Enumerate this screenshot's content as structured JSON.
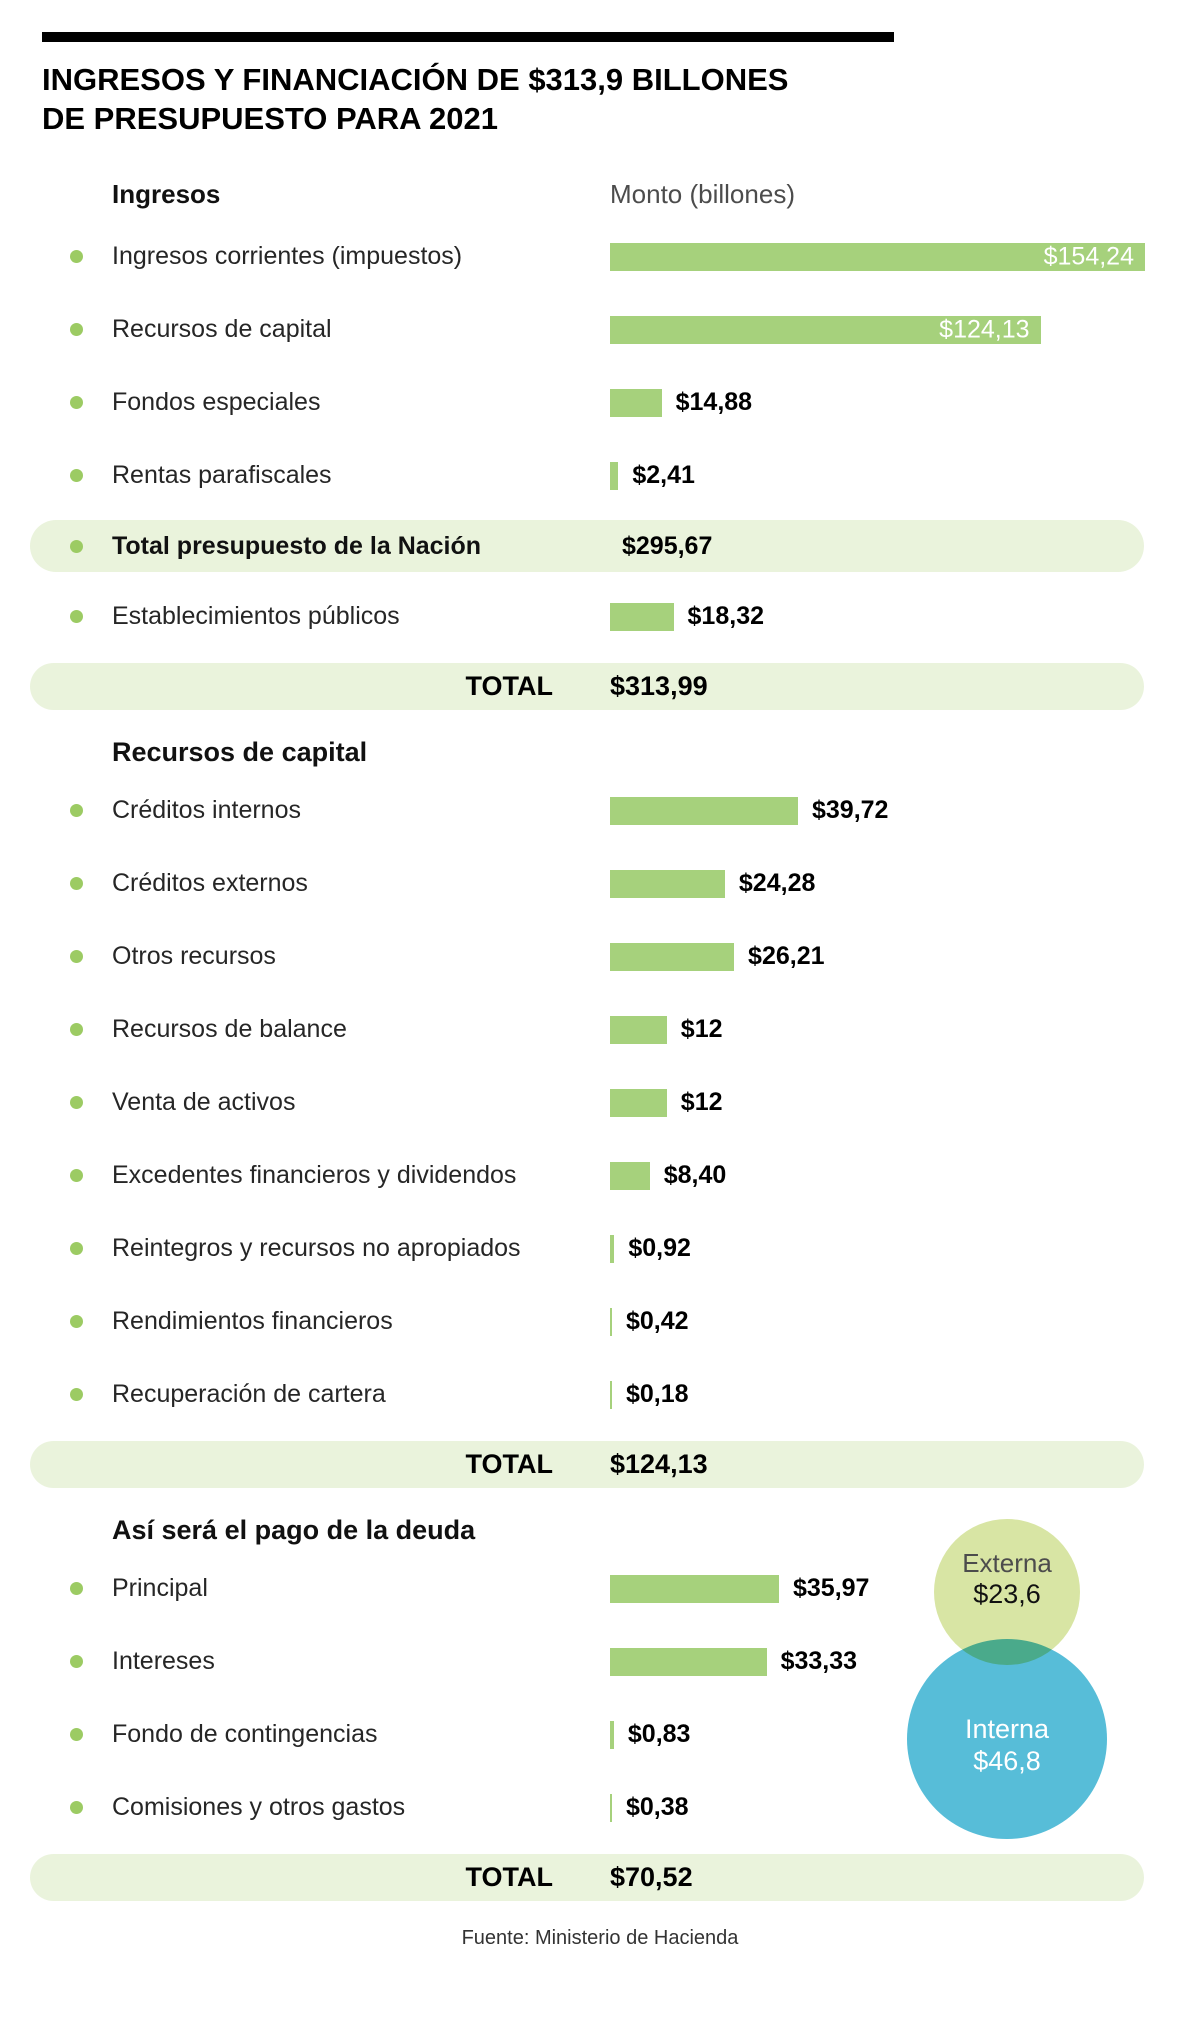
{
  "title": {
    "line1": "INGRESOS Y FINANCIACIÓN DE $313,9 BILLONES",
    "line2": "DE PRESUPUESTO PARA 2021"
  },
  "source": "Fuente: Ministerio de Hacienda",
  "colors": {
    "bar": "#a6d17c",
    "bullet": "#9ccb63",
    "highlight_bg": "#eaf3dc",
    "externa": "#d8e5a4",
    "interna": "#57bdd8"
  },
  "chart_data": [
    {
      "type": "bar",
      "id": "ingresos",
      "title": "Ingresos",
      "value_header": "Monto (billones)",
      "rows": [
        {
          "label": "Ingresos corrientes (impuestos)",
          "value": 154.24,
          "display": "$154,24",
          "value_inside": true
        },
        {
          "label": "Recursos de capital",
          "value": 124.13,
          "display": "$124,13",
          "value_inside": true
        },
        {
          "label": "Fondos especiales",
          "value": 14.88,
          "display": "$14,88"
        },
        {
          "label": "Rentas parafiscales",
          "value": 2.41,
          "display": "$2,41"
        },
        {
          "label": "Total presupuesto de la Nación",
          "value": 295.67,
          "display": "$295,67",
          "highlight": true,
          "no_bar": true
        },
        {
          "label": "Establecimientos públicos",
          "value": 18.32,
          "display": "$18,32"
        }
      ],
      "total": {
        "label": "TOTAL",
        "value": 313.99,
        "display": "$313,99"
      }
    },
    {
      "type": "bar",
      "id": "recursos-de-capital",
      "title": "Recursos de capital",
      "rows": [
        {
          "label": "Créditos internos",
          "value": 39.72,
          "display": "$39,72"
        },
        {
          "label": "Créditos externos",
          "value": 24.28,
          "display": "$24,28"
        },
        {
          "label": "Otros recursos",
          "value": 26.21,
          "display": "$26,21"
        },
        {
          "label": "Recursos de balance",
          "value": 12,
          "display": "$12"
        },
        {
          "label": "Venta de activos",
          "value": 12,
          "display": "$12"
        },
        {
          "label": "Excedentes financieros y dividendos",
          "value": 8.4,
          "display": "$8,40"
        },
        {
          "label": "Reintegros y recursos no apropiados",
          "value": 0.92,
          "display": "$0,92"
        },
        {
          "label": "Rendimientos financieros",
          "value": 0.42,
          "display": "$0,42"
        },
        {
          "label": "Recuperación de cartera",
          "value": 0.18,
          "display": "$0,18"
        }
      ],
      "total": {
        "label": "TOTAL",
        "value": 124.13,
        "display": "$124,13"
      }
    },
    {
      "type": "bar",
      "id": "pago-deuda",
      "title": "Así será el pago de la deuda",
      "rows": [
        {
          "label": "Principal",
          "value": 35.97,
          "display": "$35,97"
        },
        {
          "label": "Intereses",
          "value": 33.33,
          "display": "$33,33"
        },
        {
          "label": "Fondo de contingencias",
          "value": 0.83,
          "display": "$0,83"
        },
        {
          "label": "Comisiones y otros gastos",
          "value": 0.38,
          "display": "$0,38"
        }
      ],
      "total": {
        "label": "TOTAL",
        "value": 70.52,
        "display": "$70,52"
      },
      "bubbles": [
        {
          "label": "Externa",
          "value": 23.6,
          "display": "$23,6"
        },
        {
          "label": "Interna",
          "value": 46.8,
          "display": "$46,8"
        }
      ]
    }
  ]
}
